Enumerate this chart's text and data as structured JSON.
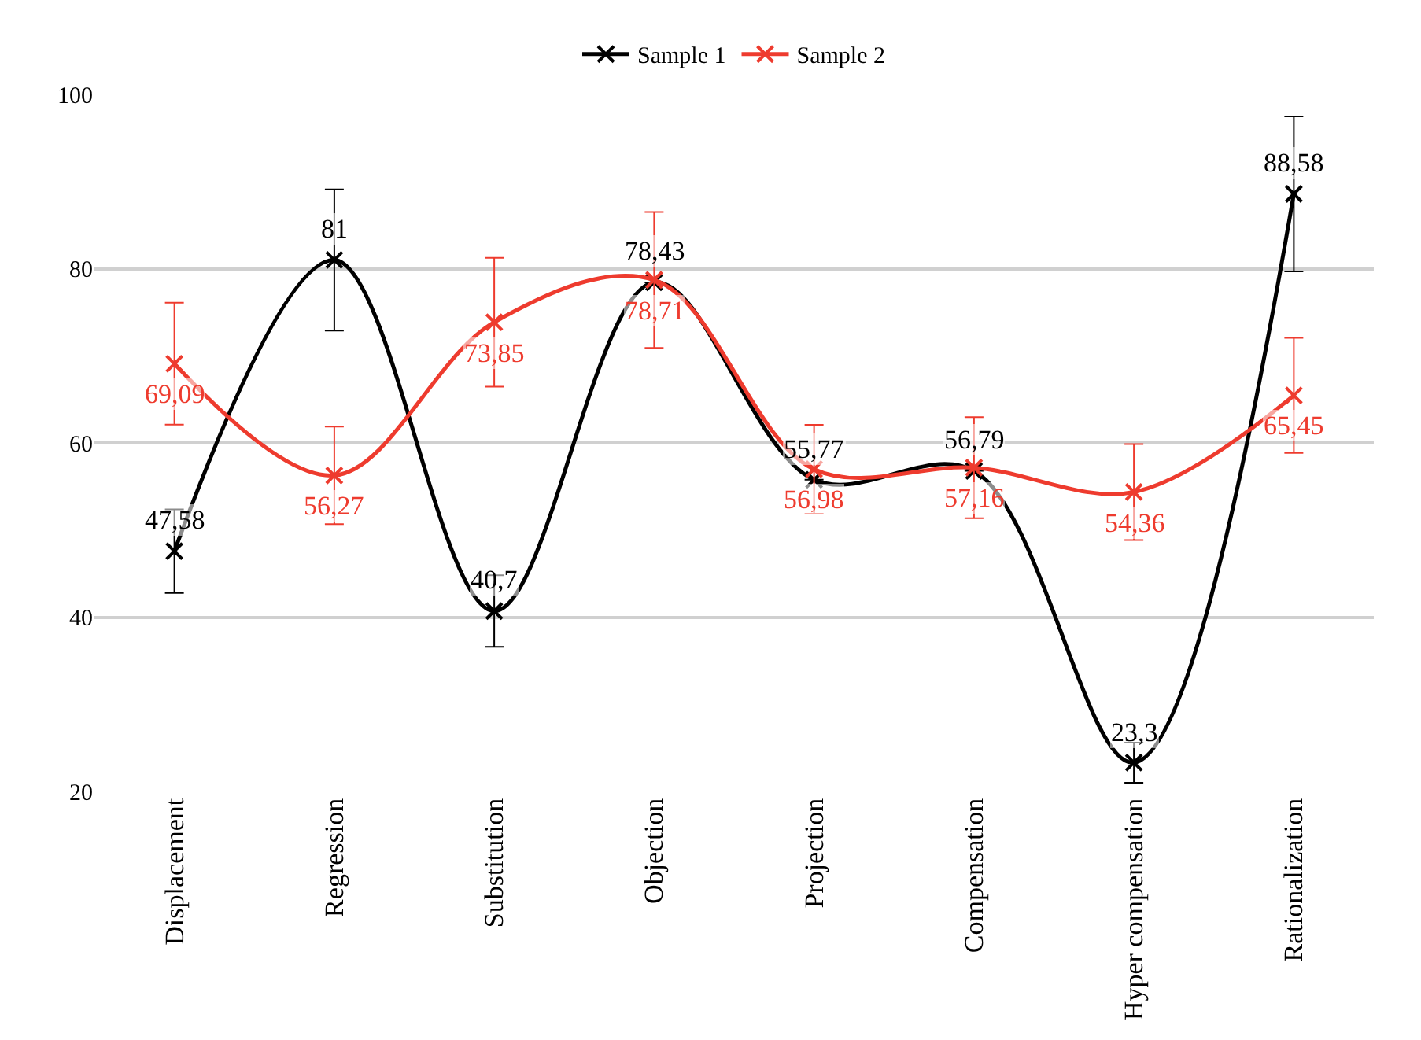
{
  "chart_data": {
    "type": "line",
    "categories": [
      "Displacement",
      "Regression",
      "Substitution",
      "Objection",
      "Projection",
      "Compensation",
      "Hyper compensation",
      "Rationalization"
    ],
    "series": [
      {
        "name": "Sample 1",
        "color": "#000000",
        "values": [
          47.58,
          81,
          40.7,
          78.43,
          55.77,
          56.79,
          23.3,
          88.58
        ],
        "value_labels": [
          "47,58",
          "81",
          "40,7",
          "78,43",
          "55,77",
          "56,79",
          "23,3",
          "88,58"
        ],
        "errors": [
          4.8,
          8.1,
          4.1,
          null,
          null,
          null,
          2.3,
          8.9
        ]
      },
      {
        "name": "Sample 2",
        "color": "#ee3b2e",
        "values": [
          69.09,
          56.27,
          73.85,
          78.71,
          56.98,
          57.16,
          54.36,
          65.45
        ],
        "value_labels": [
          "69,09",
          "56,27",
          "73,85",
          "78,71",
          "56,98",
          "57,16",
          "54,36",
          "65,45"
        ],
        "errors": [
          7.0,
          5.6,
          7.4,
          7.8,
          5.1,
          5.8,
          5.5,
          6.6
        ]
      }
    ],
    "ylim": [
      20,
      100
    ],
    "yticks": [
      20,
      40,
      60,
      80,
      100
    ],
    "grid": "y",
    "legend": "top",
    "marker": "cross",
    "line_style": "solid"
  }
}
